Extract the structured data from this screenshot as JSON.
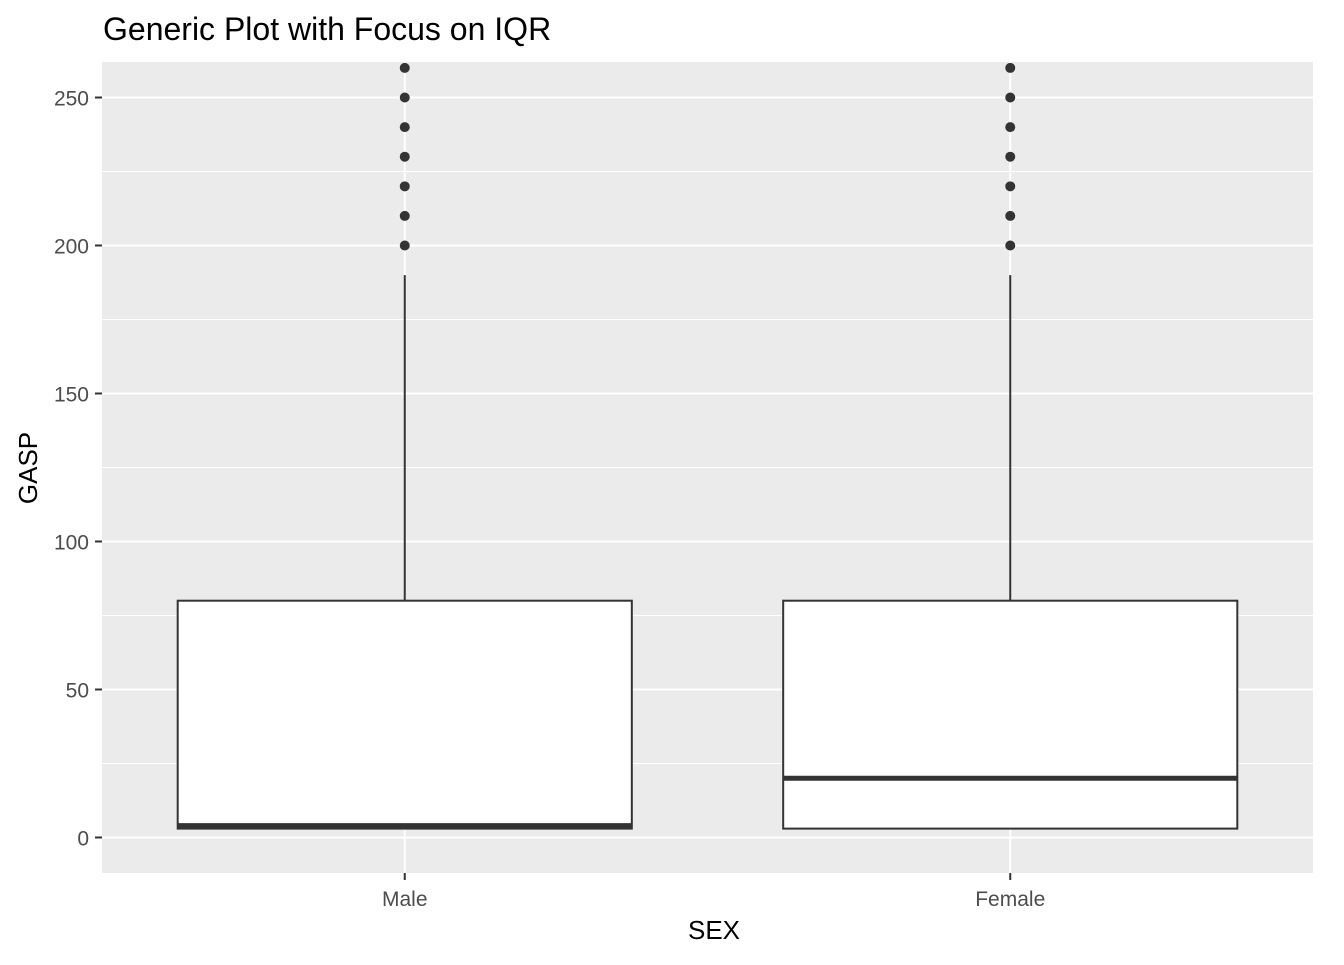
{
  "chart_data": {
    "type": "boxplot",
    "title": "Generic Plot with Focus on IQR",
    "xlabel": "SEX",
    "ylabel": "GASP",
    "categories": [
      "Male",
      "Female"
    ],
    "ylim": [
      -12,
      262
    ],
    "yticks": [
      0,
      50,
      100,
      150,
      200,
      250
    ],
    "y_minor_ticks": [
      25,
      75,
      125,
      175,
      225
    ],
    "grid": true,
    "colors": {
      "panel": "#ebebeb",
      "grid": "#ffffff",
      "box_fill": "#ffffff",
      "box_stroke": "#333333",
      "point": "#333333",
      "axis_text": "#4d4d4d",
      "title_text": "#000000"
    },
    "boxes": [
      {
        "category": "Male",
        "q1": 3,
        "median": 4,
        "q3": 80,
        "whisker_low": 3,
        "whisker_high": 190,
        "outliers": [
          200,
          210,
          220,
          230,
          240,
          250,
          260
        ]
      },
      {
        "category": "Female",
        "q1": 3,
        "median": 20,
        "q3": 80,
        "whisker_low": 3,
        "whisker_high": 190,
        "outliers": [
          200,
          210,
          220,
          230,
          240,
          250,
          260
        ]
      }
    ]
  }
}
